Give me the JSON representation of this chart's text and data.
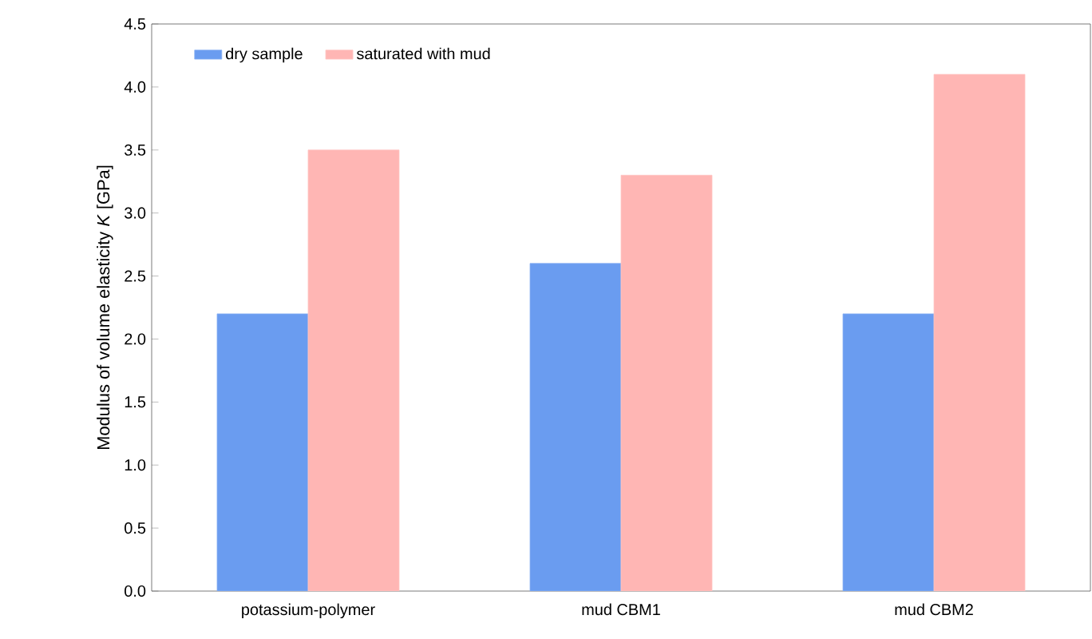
{
  "chart_data": {
    "type": "bar",
    "ylabel": "Modulus of volume elasticity *K* [GPa]",
    "categories": [
      "potassium-polymer",
      "mud CBM1",
      "mud CBM2"
    ],
    "series": [
      {
        "name": "dry sample",
        "color": "#6a9cf0",
        "values": [
          2.2,
          2.6,
          2.2
        ]
      },
      {
        "name": "saturated with mud",
        "color": "#ffb6b4",
        "values": [
          3.5,
          3.3,
          4.1
        ]
      }
    ],
    "ylim": [
      0,
      4.5
    ],
    "yticks": [
      {
        "value": 0,
        "label": "0.0"
      },
      {
        "value": 0.5,
        "label": "0.5"
      },
      {
        "value": 1,
        "label": "1.0"
      },
      {
        "value": 1.5,
        "label": "1.5"
      },
      {
        "value": 2,
        "label": "2.0"
      },
      {
        "value": 2.5,
        "label": "2.5"
      },
      {
        "value": 3,
        "label": "3.0"
      },
      {
        "value": 3.5,
        "label": "3.5"
      },
      {
        "value": 4,
        "label": "4.0"
      },
      {
        "value": 4.5,
        "label": "4.5"
      }
    ],
    "legend": "top left",
    "grid": false
  }
}
